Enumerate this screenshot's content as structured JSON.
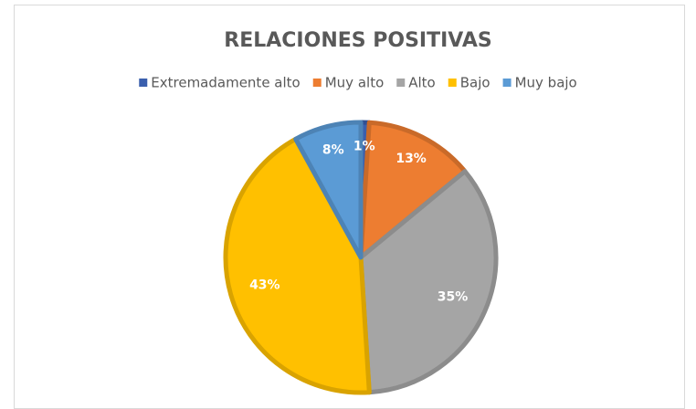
{
  "chart_data": {
    "type": "pie",
    "title": "RELACIONES POSITIVAS",
    "categories": [
      "Extremadamente alto",
      "Muy alto",
      "Alto",
      "Bajo",
      "Muy bajo"
    ],
    "values": [
      1,
      13,
      35,
      43,
      8
    ],
    "value_labels": [
      "1%",
      "13%",
      "35%",
      "43%",
      "8%"
    ],
    "colors": [
      "#3a5fad",
      "#ed7d31",
      "#a5a5a5",
      "#ffc000",
      "#5b9bd5"
    ],
    "legend": "top"
  }
}
